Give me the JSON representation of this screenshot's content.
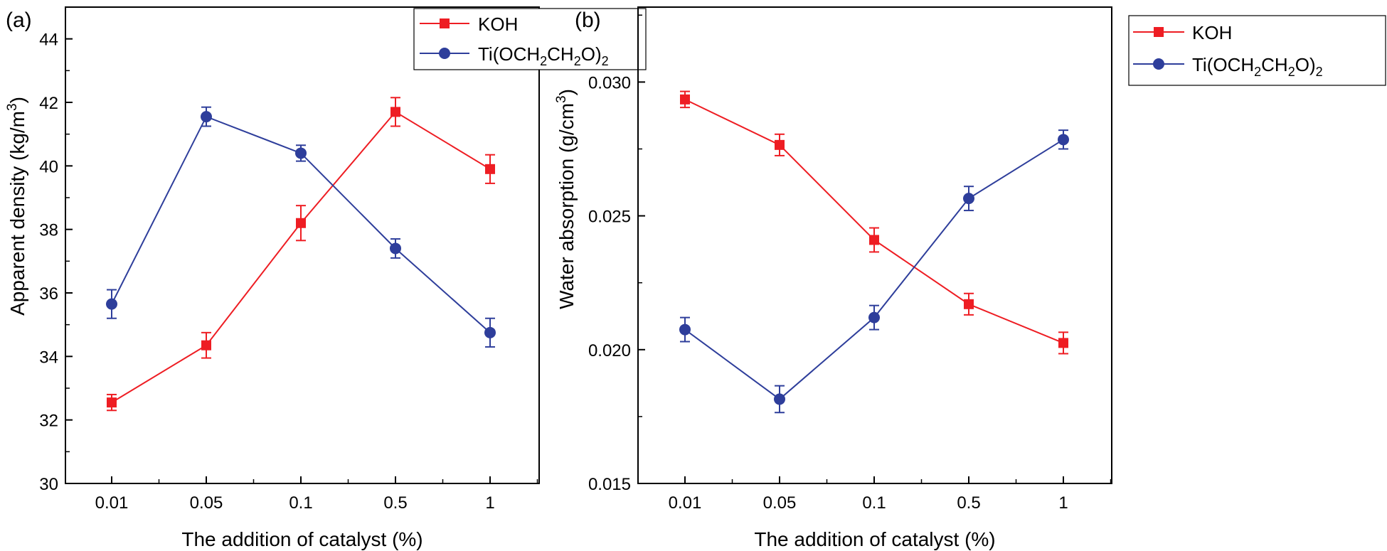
{
  "colors": {
    "KOH": "#ee1d23",
    "Ti": "#2e3e9b",
    "axis": "#000000"
  },
  "panels": [
    {
      "tag": "(a)",
      "ylabel_main": "Apparent density (kg/m",
      "ylabel_sup": "3",
      "ylabel_end": ")",
      "xlabel": "The addition of catalyst (%)"
    },
    {
      "tag": "(b)",
      "ylabel_main": "Water absorption (g/cm",
      "ylabel_sup": "3",
      "ylabel_end": ")",
      "xlabel": "The addition of catalyst (%)"
    }
  ],
  "legend": {
    "koh": "KOH",
    "ti_parts": [
      "Ti(OCH",
      "2",
      "CH",
      "2",
      "O)",
      "2"
    ]
  },
  "chart_data": [
    {
      "type": "line",
      "categories": [
        "0.01",
        "0.05",
        "0.1",
        "0.5",
        "1"
      ],
      "ylim": [
        30,
        45
      ],
      "yticks": [
        "30",
        "32",
        "34",
        "36",
        "38",
        "40",
        "42",
        "44"
      ],
      "ytick_values": [
        30,
        32,
        34,
        36,
        38,
        40,
        42,
        44
      ],
      "legend_position": "top-right",
      "series": [
        {
          "name": "KOH",
          "marker": "square",
          "values": [
            32.55,
            34.35,
            38.2,
            41.7,
            39.9
          ],
          "errors": [
            0.25,
            0.4,
            0.55,
            0.45,
            0.45
          ]
        },
        {
          "name": "Ti(OCH2CH2O)2",
          "marker": "circle",
          "values": [
            35.65,
            41.55,
            40.4,
            37.4,
            34.75
          ],
          "errors": [
            0.45,
            0.3,
            0.25,
            0.3,
            0.45
          ]
        }
      ]
    },
    {
      "type": "line",
      "categories": [
        "0.01",
        "0.05",
        "0.1",
        "0.5",
        "1"
      ],
      "ylim": [
        0.015,
        0.0328
      ],
      "yticks": [
        "0.015",
        "0.020",
        "0.025",
        "0.030"
      ],
      "ytick_values": [
        0.015,
        0.02,
        0.025,
        0.03
      ],
      "legend_position": "top-right",
      "series": [
        {
          "name": "KOH",
          "marker": "square",
          "values": [
            0.02935,
            0.02765,
            0.0241,
            0.0217,
            0.02025
          ],
          "errors": [
            0.0003,
            0.0004,
            0.00045,
            0.0004,
            0.0004
          ]
        },
        {
          "name": "Ti(OCH2CH2O)2",
          "marker": "circle",
          "values": [
            0.02075,
            0.01815,
            0.0212,
            0.02565,
            0.02785
          ],
          "errors": [
            0.00045,
            0.0005,
            0.00045,
            0.00045,
            0.00035
          ]
        }
      ]
    }
  ]
}
